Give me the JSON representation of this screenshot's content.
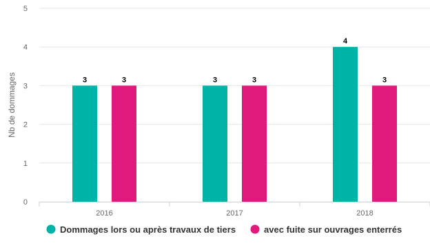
{
  "chart_data": {
    "type": "bar",
    "title": "",
    "xlabel": "",
    "ylabel": "Nb de dommages",
    "categories": [
      "2016",
      "2017",
      "2018"
    ],
    "series": [
      {
        "name": "Dommages lors ou après travaux de tiers",
        "color": "#00b3a7",
        "values": [
          3,
          3,
          4
        ]
      },
      {
        "name": "avec fuite sur ouvrages enterrés",
        "color": "#e0197d",
        "values": [
          3,
          3,
          3
        ]
      }
    ],
    "ylim": [
      0,
      5
    ],
    "yticks": [
      0,
      1,
      2,
      3,
      4,
      5
    ],
    "grid": true,
    "data_labels": true,
    "legend_position": "bottom"
  }
}
